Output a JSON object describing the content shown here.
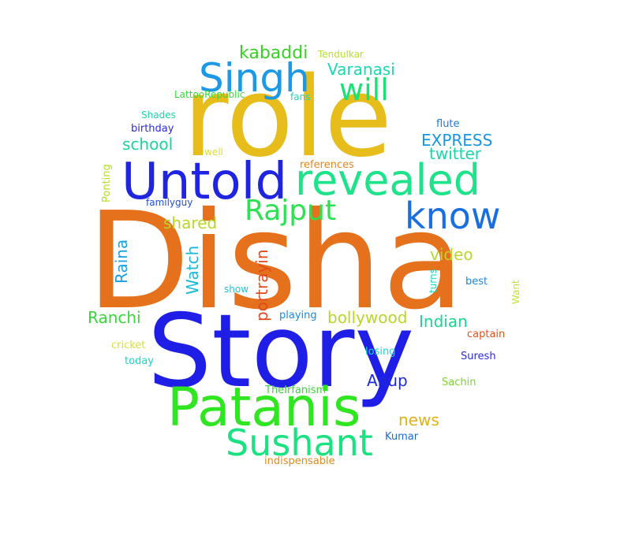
{
  "words": [
    {
      "text": "Disha",
      "color": "#e5711c"
    },
    {
      "text": "Story",
      "color": "#1f1ee6"
    },
    {
      "text": "role",
      "color": "#e6bd1a"
    },
    {
      "text": "Untold",
      "color": "#1f24e0"
    },
    {
      "text": "revealed",
      "color": "#1ee38a"
    },
    {
      "text": "Patanis",
      "color": "#2fe620"
    },
    {
      "text": "Singh",
      "color": "#1c98e4"
    },
    {
      "text": "know",
      "color": "#1a6fe0"
    },
    {
      "text": "Sushant",
      "color": "#1ae280"
    },
    {
      "text": "Rajput",
      "color": "#2ee052"
    },
    {
      "text": "will",
      "color": "#1ae276"
    },
    {
      "text": "kabaddi",
      "color": "#38d024"
    },
    {
      "text": "Varanasi",
      "color": "#1ad8b0"
    },
    {
      "text": "Tendulkar",
      "color": "#b6e02c"
    },
    {
      "text": "LattooRepublic",
      "color": "#3ad63a"
    },
    {
      "text": "fans",
      "color": "#1ad6c0"
    },
    {
      "text": "Shades",
      "color": "#1ad6a8"
    },
    {
      "text": "birthday",
      "color": "#2b2bd8"
    },
    {
      "text": "flute",
      "color": "#1a7ed6"
    },
    {
      "text": "school",
      "color": "#1ad69a"
    },
    {
      "text": "EXPRESS",
      "color": "#1a96e0"
    },
    {
      "text": "twitter",
      "color": "#1ad6a8"
    },
    {
      "text": "well",
      "color": "#d8e03a"
    },
    {
      "text": "references",
      "color": "#e5861c"
    },
    {
      "text": "Ponting",
      "color": "#b6e02c"
    },
    {
      "text": "familyguy",
      "color": "#1f4ed6"
    },
    {
      "text": "shared",
      "color": "#b6d82a"
    },
    {
      "text": "Raina",
      "color": "#1aa0e0"
    },
    {
      "text": "Watch",
      "color": "#1ab8d8"
    },
    {
      "text": "portrayin",
      "color": "#e04a1c"
    },
    {
      "text": "video",
      "color": "#b6d82a"
    },
    {
      "text": "turns",
      "color": "#1ad6c8"
    },
    {
      "text": "best",
      "color": "#1a8ae0"
    },
    {
      "text": "Want",
      "color": "#c8e02c"
    },
    {
      "text": "show",
      "color": "#1ac8d8"
    },
    {
      "text": "Ranchi",
      "color": "#3ad63a"
    },
    {
      "text": "playing",
      "color": "#1a8ae0"
    },
    {
      "text": "bollywood",
      "color": "#b6d82a"
    },
    {
      "text": "Indian",
      "color": "#1ad690"
    },
    {
      "text": "captain",
      "color": "#e0521c"
    },
    {
      "text": "cricket",
      "color": "#d8e03a"
    },
    {
      "text": "losing",
      "color": "#1ad6c8"
    },
    {
      "text": "Suresh",
      "color": "#2b2bd8"
    },
    {
      "text": "today",
      "color": "#1ad6c8"
    },
    {
      "text": "Anup",
      "color": "#1f2ad8"
    },
    {
      "text": "Sachin",
      "color": "#7ad62c"
    },
    {
      "text": "TheIrfanism",
      "color": "#3ad63a"
    },
    {
      "text": "news",
      "color": "#e0b21a"
    },
    {
      "text": "Kumar",
      "color": "#1a6ad6"
    },
    {
      "text": "indispensable",
      "color": "#e58a1c"
    }
  ]
}
